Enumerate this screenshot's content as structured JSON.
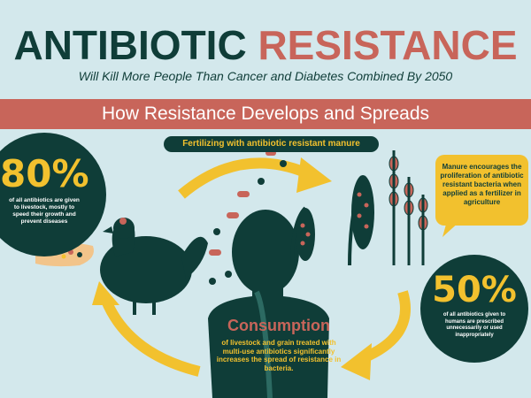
{
  "title": {
    "part1": "ANTIBIOTIC",
    "part2": "RESISTANCE"
  },
  "subtitle": "Will Kill More People Than Cancer and Diabetes Combined By 2050",
  "banner": "How Resistance Develops and Spreads",
  "fertilizing_label": "Fertilizing with antibiotic resistant manure",
  "stat_livestock": {
    "value": "80%",
    "text": "of all antibiotics are given to livestock, mostly to speed their growth and prevent diseases"
  },
  "manure_note": "Manure encourages the proliferation of antibiotic resistant bacteria when applied as a fertilizer in agriculture",
  "stat_humans": {
    "value": "50%",
    "text": "of all antibiotics given to humans are prescribed unnecessarily or used inappropriately"
  },
  "consumption": {
    "title": "Consumption",
    "text": "of livestock and grain treated with multi-use antibiotics significantly increases the spread of resistance in bacteria."
  },
  "colors": {
    "dark_green": "#0f3d38",
    "red": "#c8655a",
    "yellow": "#f2c12e",
    "background": "#d3e8ec"
  }
}
